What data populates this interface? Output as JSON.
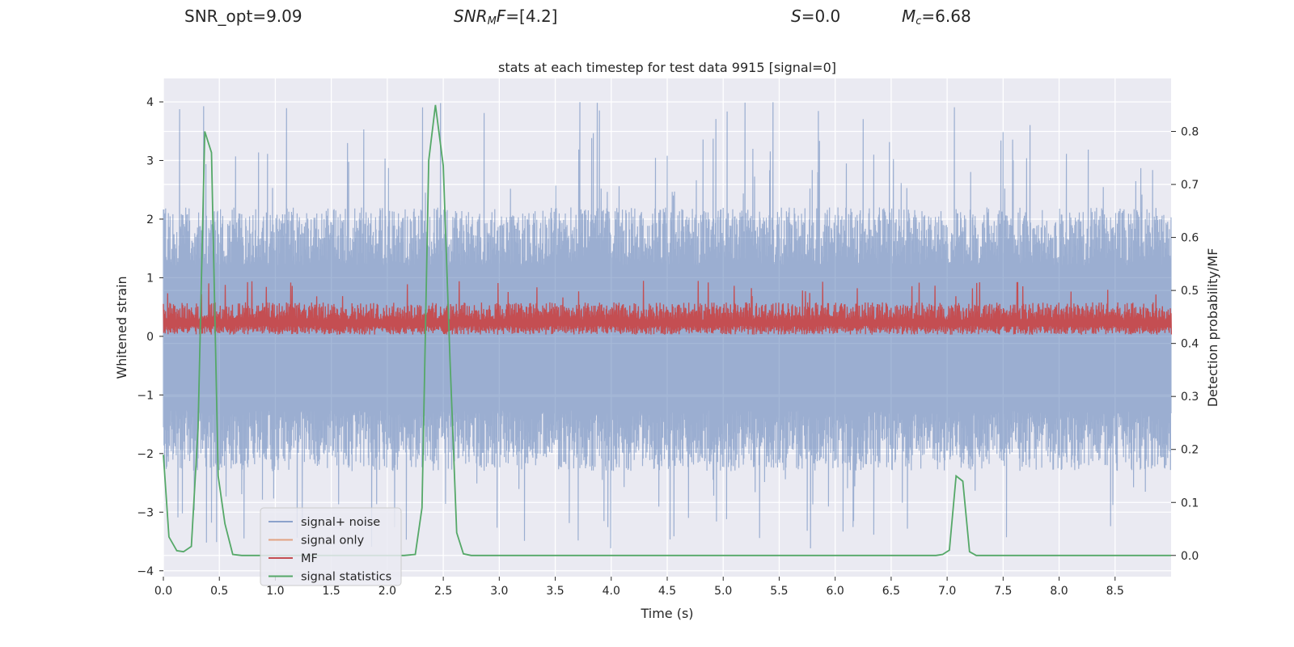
{
  "header": {
    "snr_opt": "SNR_opt=9.09",
    "snr_mf_label": "SNR",
    "snr_mf_sub": "M",
    "snr_mf_tail": "F",
    "snr_mf_value": "=[4.2]",
    "s_label": "S",
    "s_value": "=0.0",
    "mc_label": "M",
    "mc_sub": "c",
    "mc_value": "=6.68"
  },
  "chart_data": {
    "type": "line",
    "title": "stats at each timestep for test data 9915 [signal=0]",
    "xlabel": "Time (s)",
    "ylabel": "Whitened strain",
    "y2label": "Detection probability/MF",
    "xlim": [
      0,
      9.0
    ],
    "ylim": [
      -4.1,
      4.4
    ],
    "y2lim": [
      -0.04,
      0.9
    ],
    "xticks": [
      0.0,
      0.5,
      1.0,
      1.5,
      2.0,
      2.5,
      3.0,
      3.5,
      4.0,
      4.5,
      5.0,
      5.5,
      6.0,
      6.5,
      7.0,
      7.5,
      8.0,
      8.5
    ],
    "xtick_labels": [
      "0.0",
      "0.5",
      "1.0",
      "1.5",
      "2.0",
      "2.5",
      "3.0",
      "3.5",
      "4.0",
      "4.5",
      "5.0",
      "5.5",
      "6.0",
      "6.5",
      "7.0",
      "7.5",
      "8.0",
      "8.5"
    ],
    "yticks": [
      -4,
      -3,
      -2,
      -1,
      0,
      1,
      2,
      3,
      4
    ],
    "ytick_labels": [
      "−4",
      "−3",
      "−2",
      "−1",
      "0",
      "1",
      "2",
      "3",
      "4"
    ],
    "y2ticks": [
      0.0,
      0.1,
      0.2,
      0.3,
      0.4,
      0.5,
      0.6,
      0.7,
      0.8
    ],
    "y2tick_labels": [
      "0.0",
      "0.1",
      "0.2",
      "0.3",
      "0.4",
      "0.5",
      "0.6",
      "0.7",
      "0.8"
    ],
    "grid": true,
    "legend_position": "lower-left",
    "series": [
      {
        "name": "signal+ noise",
        "axis": "left",
        "color": "#4c72b0",
        "alpha": 0.5,
        "description": "dense noise trace spanning roughly -3.6 to 4.0",
        "envelope": {
          "typical_min": -2.3,
          "typical_max": 2.2,
          "peak_max": 4.0,
          "peak_min": -3.65
        }
      },
      {
        "name": "signal only",
        "axis": "left",
        "color": "#dd8452",
        "alpha": 0.6,
        "values": []
      },
      {
        "name": "MF",
        "axis": "left",
        "color": "#c44e52",
        "description": "dense trace between about 0.0 and 0.95",
        "envelope": {
          "typical_min": 0.05,
          "typical_max": 0.6,
          "peak_max": 0.98
        }
      },
      {
        "name": "signal statistics",
        "axis": "right",
        "color": "#55a868",
        "x": [
          0.0,
          0.05,
          0.12,
          0.18,
          0.25,
          0.31,
          0.37,
          0.43,
          0.49,
          0.55,
          0.62,
          0.7,
          1.0,
          2.0,
          2.15,
          2.25,
          2.31,
          2.37,
          2.43,
          2.5,
          2.56,
          2.62,
          2.68,
          2.75,
          3.0,
          6.9,
          6.96,
          7.02,
          7.08,
          7.14,
          7.2,
          7.26,
          7.3,
          9.0
        ],
        "values": [
          0.19,
          0.035,
          0.009,
          0.007,
          0.017,
          0.24,
          0.8,
          0.76,
          0.15,
          0.06,
          0.002,
          0.0,
          0.0,
          0.0,
          0.0,
          0.002,
          0.09,
          0.745,
          0.85,
          0.735,
          0.37,
          0.043,
          0.003,
          0.0,
          0.0,
          0.0,
          0.002,
          0.01,
          0.15,
          0.14,
          0.007,
          0.0,
          0.0,
          0.0
        ]
      }
    ]
  }
}
